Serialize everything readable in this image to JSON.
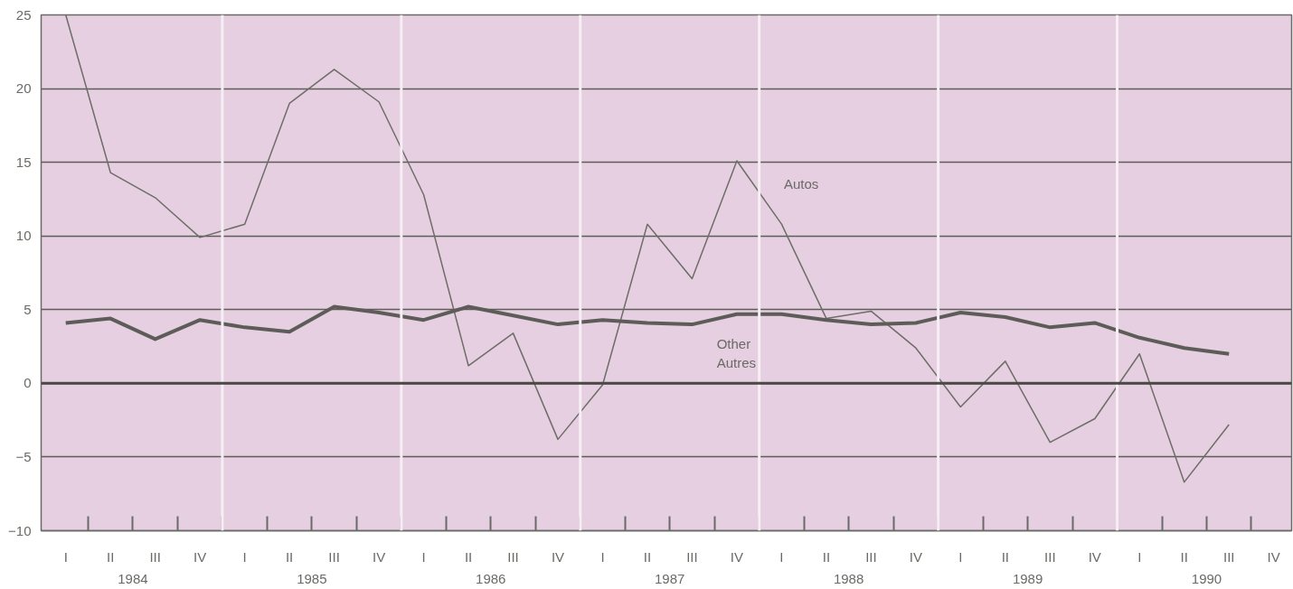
{
  "chart_data": {
    "type": "line",
    "categories": [
      "I",
      "II",
      "III",
      "IV",
      "I",
      "II",
      "III",
      "IV",
      "I",
      "II",
      "III",
      "IV",
      "I",
      "II",
      "III",
      "IV",
      "I",
      "II",
      "III",
      "IV",
      "I",
      "II",
      "III",
      "IV",
      "I",
      "II",
      "III",
      "IV"
    ],
    "annotations": [
      "1984",
      "1985",
      "1986",
      "1987",
      "1988",
      "1989",
      "1990"
    ],
    "series": [
      {
        "name": "Autos",
        "color": "#6e6d68",
        "values": [
          25,
          14.3,
          12.6,
          9.9,
          10.8,
          19.0,
          21.3,
          19.1,
          12.8,
          1.2,
          3.4,
          -3.8,
          -0.1,
          10.8,
          7.1,
          15.1,
          10.8,
          4.4,
          4.9,
          2.4,
          -1.6,
          1.5,
          -4.0,
          -2.4,
          2.0,
          -6.7,
          -2.8,
          null
        ]
      },
      {
        "name": "Other\nAutres",
        "color": "#5e5c58",
        "values": [
          4.1,
          4.4,
          3.0,
          4.3,
          3.8,
          3.5,
          5.2,
          4.8,
          4.3,
          5.2,
          4.6,
          4.0,
          4.3,
          4.1,
          4.0,
          4.7,
          4.7,
          4.3,
          4.0,
          4.1,
          4.8,
          4.5,
          3.8,
          4.1,
          3.1,
          2.4,
          2.0,
          null
        ]
      }
    ],
    "ylim": [
      -10,
      25
    ],
    "yticks": [
      -10,
      -5,
      0,
      5,
      10,
      15,
      20,
      25
    ],
    "ref_lines": [
      {
        "axis": "y",
        "value": 0,
        "color": "#4a4945"
      }
    ],
    "grid": "y",
    "line_style": "solid"
  }
}
